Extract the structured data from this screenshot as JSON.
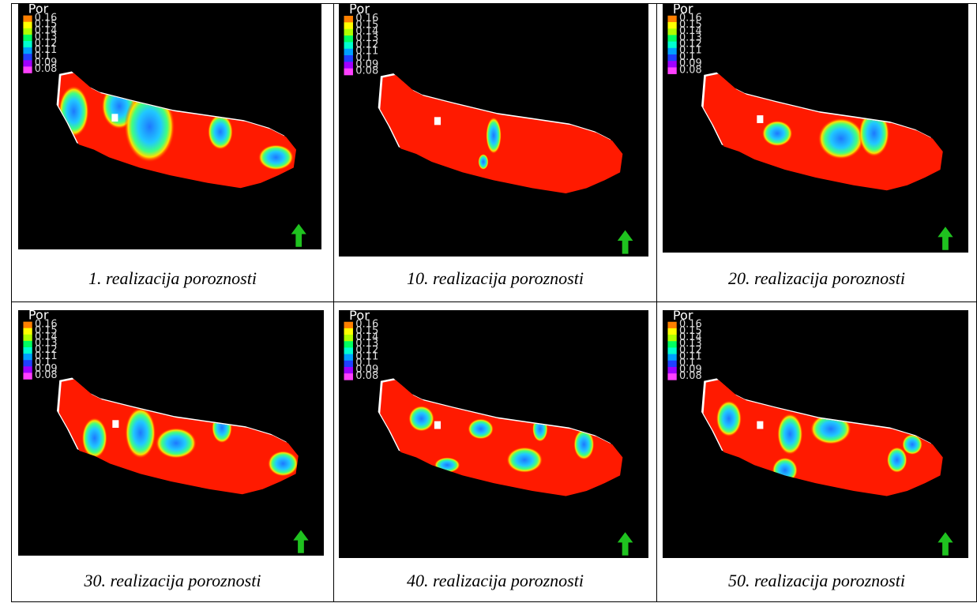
{
  "legend": {
    "title": "Por",
    "ticks": [
      "0.16",
      "0.15",
      "0.14",
      "0.13",
      "0.12",
      "0.11",
      "0.1",
      "0.09",
      "0.08"
    ],
    "colors": [
      "#ff8000",
      "#ffff00",
      "#b0ff00",
      "#00ff60",
      "#00ffd0",
      "#00a0ff",
      "#2040ff",
      "#a000ff",
      "#ff40ff"
    ]
  },
  "north_arrow_icon": "north-arrow-icon",
  "panels": [
    {
      "caption": "1. realizacija poroznosti"
    },
    {
      "caption": "10. realizacija poroznosti"
    },
    {
      "caption": "20. realizacija poroznosti"
    },
    {
      "caption": "30. realizacija poroznosti"
    },
    {
      "caption": "40. realizacija poroznosti"
    },
    {
      "caption": "50. realizacija poroznosti"
    }
  ],
  "colors": {
    "background": "#000000",
    "porosity_high": "#ff1a00",
    "porosity_mid": "#ffe000",
    "porosity_low": "#1e90ff",
    "north_arrow": "#1fc21f",
    "outline": "#ffffff"
  }
}
